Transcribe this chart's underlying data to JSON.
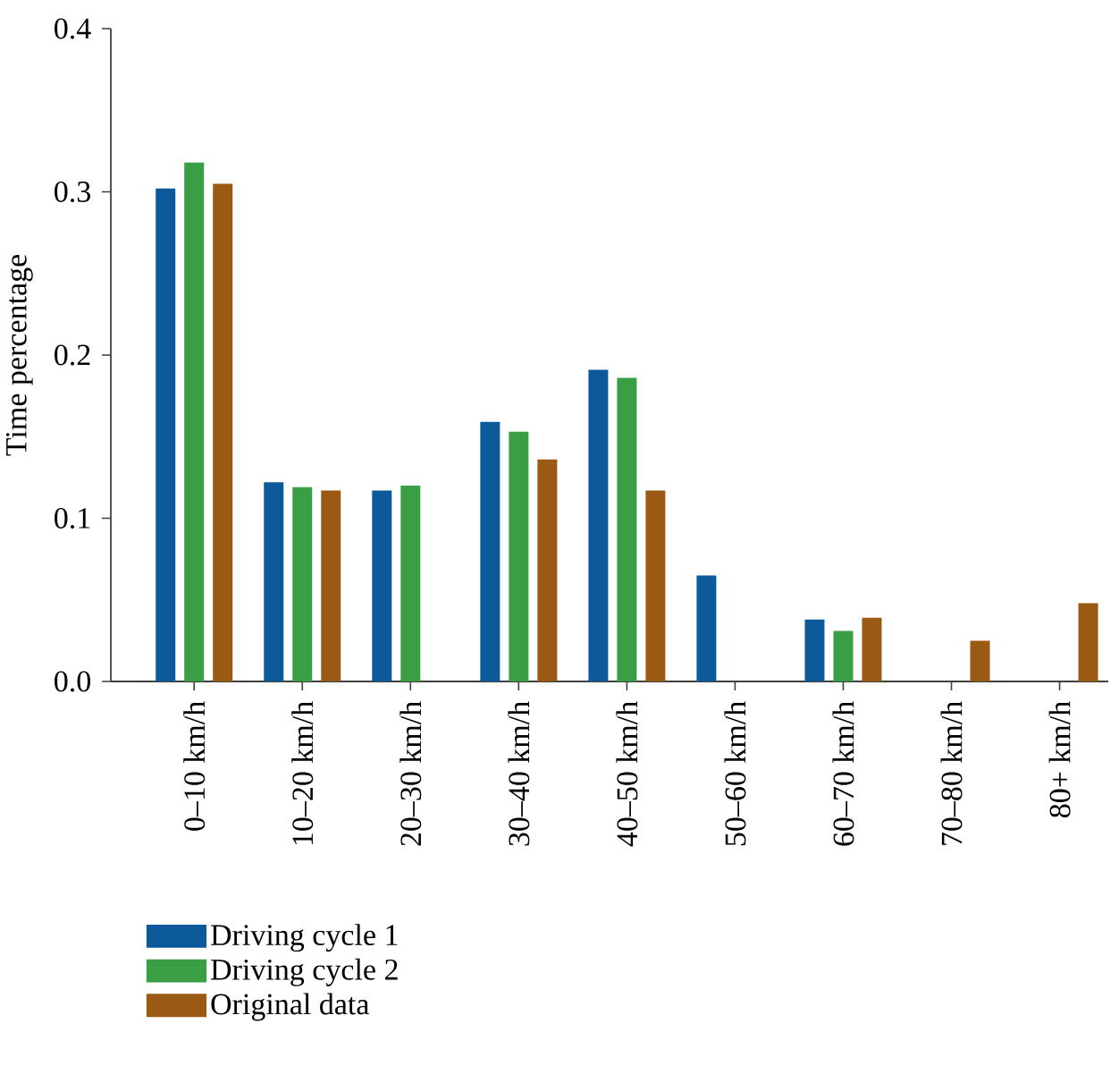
{
  "chart_data": {
    "type": "bar",
    "ylabel": "Time percentage",
    "categories": [
      "0–10 km/h",
      "10–20 km/h",
      "20–30 km/h",
      "30–40 km/h",
      "40–50 km/h",
      "50–60 km/h",
      "60–70 km/h",
      "70–80 km/h",
      "80+ km/h"
    ],
    "series": [
      {
        "name": "Driving cycle 1",
        "color": "#0c5a9a",
        "values": [
          0.302,
          0.122,
          0.117,
          0.159,
          0.191,
          0.065,
          0.038,
          0,
          0
        ]
      },
      {
        "name": "Driving cycle 2",
        "color": "#3a9e44",
        "values": [
          0.318,
          0.119,
          0.12,
          0.153,
          0.186,
          0,
          0.031,
          0,
          0
        ]
      },
      {
        "name": "Original data",
        "color": "#9b5a14",
        "values": [
          0.305,
          0.117,
          0,
          0.136,
          0.117,
          0,
          0.039,
          0.025,
          0.048
        ]
      }
    ],
    "ylim": [
      0,
      0.4
    ],
    "yticks": [
      {
        "value": 0,
        "label": "0.0"
      },
      0.1,
      0.2,
      0.3,
      0.4
    ],
    "grid": false,
    "legend": "bottom left"
  }
}
